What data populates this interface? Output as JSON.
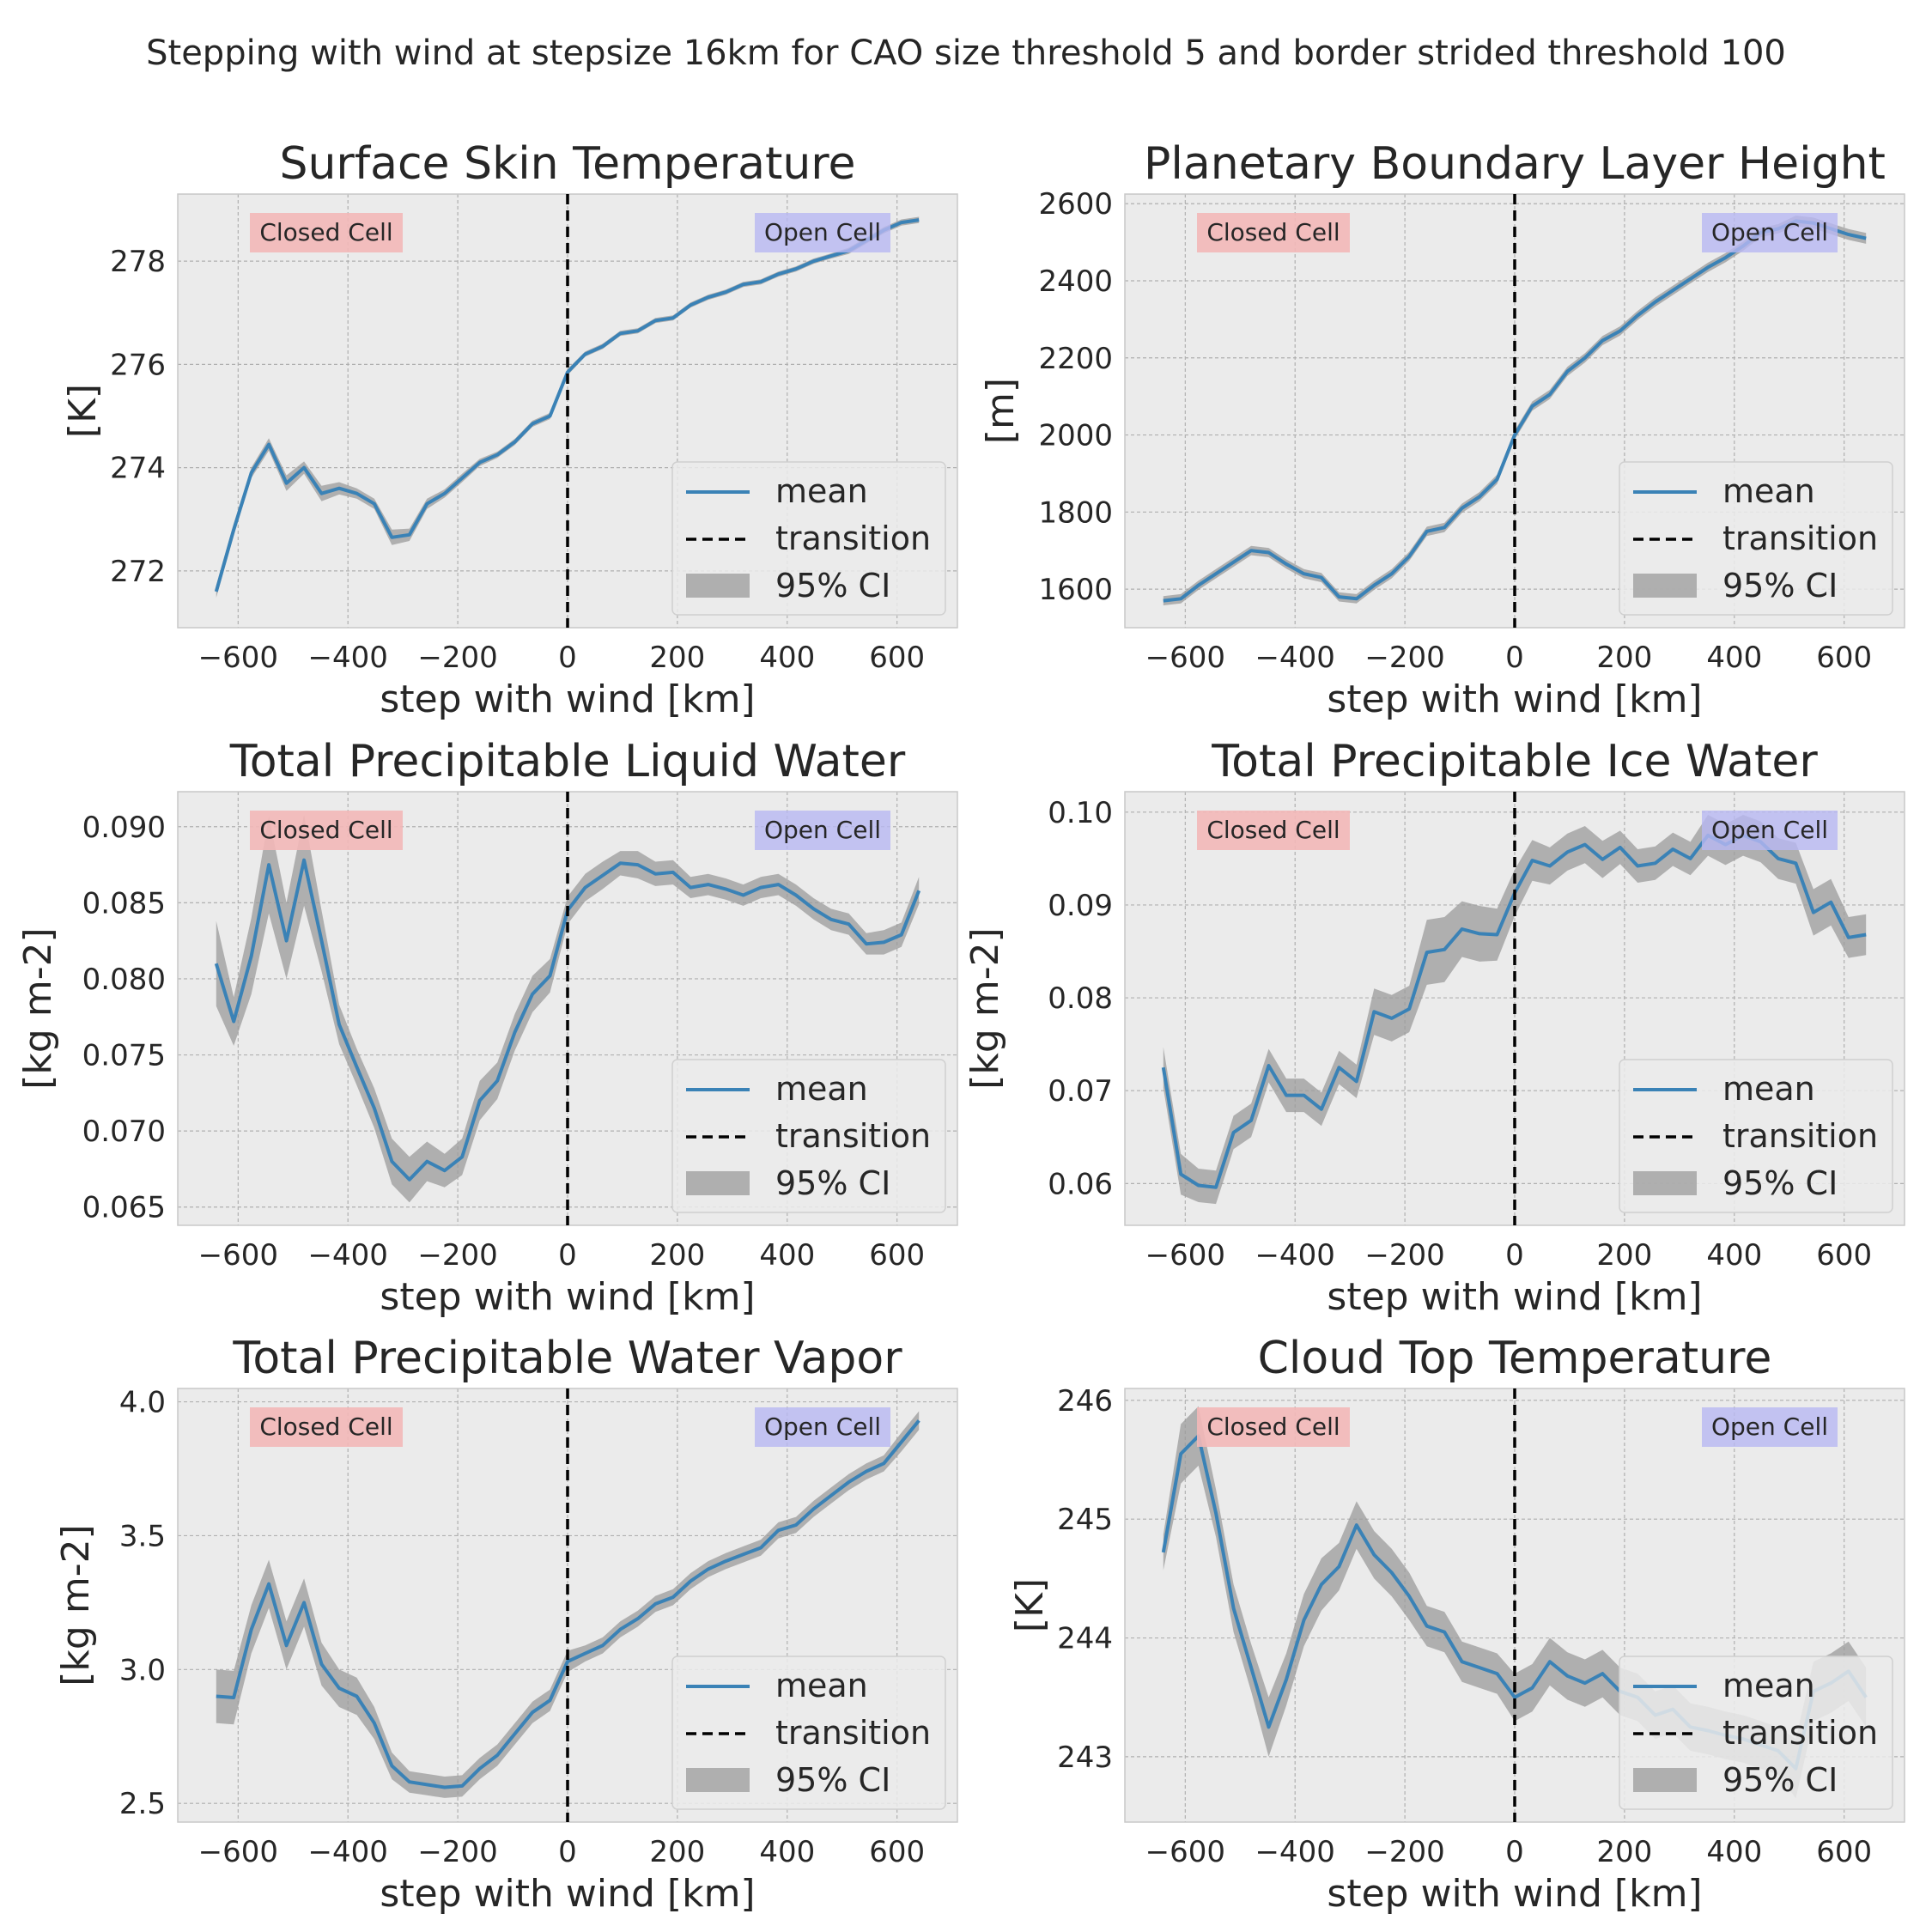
{
  "figure": {
    "suptitle": "Stepping with wind at stepsize 16km for CAO size threshold 5 and border strided threshold 100"
  },
  "colors": {
    "mean_line": "#3a82b6",
    "ci_fill": "#9b9b9b",
    "transition": "#000000",
    "axes_bg": "#ebebeb",
    "grid": "#b0b0b0",
    "closed_box": "#f3b8b8",
    "open_box": "#b8b8f2"
  },
  "chart_data": [
    {
      "type": "line",
      "title": "Surface Skin Temperature",
      "xlabel": "step with wind [km]",
      "ylabel": "[K]",
      "xlim": [
        -710,
        710
      ],
      "ylim": [
        270.9,
        279.3
      ],
      "xticks": [
        -600,
        -400,
        -200,
        0,
        200,
        400,
        600
      ],
      "yticks": [
        272,
        274,
        276,
        278
      ],
      "x": [
        -640,
        -608,
        -576,
        -544,
        -512,
        -480,
        -448,
        -416,
        -384,
        -352,
        -320,
        -288,
        -256,
        -224,
        -192,
        -160,
        -128,
        -96,
        -64,
        -32,
        0,
        32,
        64,
        96,
        128,
        160,
        192,
        224,
        256,
        288,
        320,
        352,
        384,
        416,
        448,
        480,
        512,
        544,
        576,
        608,
        640
      ],
      "series": [
        {
          "name": "mean",
          "values": [
            271.6,
            272.8,
            273.9,
            274.45,
            273.7,
            274.0,
            273.5,
            273.6,
            273.5,
            273.3,
            272.65,
            272.7,
            273.3,
            273.5,
            273.8,
            274.1,
            274.25,
            274.5,
            274.85,
            275.0,
            275.85,
            276.2,
            276.35,
            276.6,
            276.65,
            276.85,
            276.9,
            277.15,
            277.3,
            277.4,
            277.55,
            277.6,
            277.75,
            277.85,
            278.0,
            278.1,
            278.2,
            278.4,
            278.6,
            278.75,
            278.8
          ]
        }
      ],
      "ci_halfwidth": [
        0.12,
        0.12,
        0.1,
        0.12,
        0.15,
        0.12,
        0.15,
        0.12,
        0.1,
        0.1,
        0.15,
        0.12,
        0.1,
        0.08,
        0.08,
        0.07,
        0.06,
        0.06,
        0.06,
        0.06,
        0.06,
        0.05,
        0.05,
        0.05,
        0.05,
        0.05,
        0.05,
        0.05,
        0.05,
        0.05,
        0.05,
        0.05,
        0.05,
        0.05,
        0.05,
        0.05,
        0.06,
        0.06,
        0.06,
        0.06,
        0.06
      ],
      "transition_x": 0,
      "legend": {
        "position": "lower-right",
        "entries": [
          "mean",
          "transition",
          "95% CI"
        ]
      },
      "labels": {
        "closed": "Closed Cell",
        "open": "Open Cell"
      }
    },
    {
      "type": "line",
      "title": "Planetary Boundary Layer Height",
      "xlabel": "step with wind [km]",
      "ylabel": "[m]",
      "xlim": [
        -710,
        710
      ],
      "ylim": [
        1500,
        2625
      ],
      "xticks": [
        -600,
        -400,
        -200,
        0,
        200,
        400,
        600
      ],
      "yticks": [
        1600,
        1800,
        2000,
        2200,
        2400,
        2600
      ],
      "x": [
        -640,
        -608,
        -576,
        -544,
        -512,
        -480,
        -448,
        -416,
        -384,
        -352,
        -320,
        -288,
        -256,
        -224,
        -192,
        -160,
        -128,
        -96,
        -64,
        -32,
        0,
        32,
        64,
        96,
        128,
        160,
        192,
        224,
        256,
        288,
        320,
        352,
        384,
        416,
        448,
        480,
        512,
        544,
        576,
        608,
        640
      ],
      "series": [
        {
          "name": "mean",
          "values": [
            1570,
            1575,
            1610,
            1640,
            1670,
            1700,
            1695,
            1665,
            1640,
            1630,
            1580,
            1575,
            1610,
            1640,
            1685,
            1750,
            1760,
            1810,
            1840,
            1885,
            2000,
            2075,
            2105,
            2165,
            2200,
            2245,
            2270,
            2310,
            2345,
            2375,
            2405,
            2435,
            2460,
            2490,
            2525,
            2535,
            2555,
            2550,
            2535,
            2520,
            2510
          ]
        }
      ],
      "ci_halfwidth": [
        12,
        12,
        12,
        12,
        12,
        12,
        12,
        12,
        12,
        12,
        12,
        12,
        12,
        12,
        12,
        12,
        12,
        12,
        12,
        12,
        12,
        12,
        12,
        12,
        12,
        12,
        12,
        12,
        12,
        12,
        12,
        12,
        12,
        12,
        12,
        12,
        14,
        14,
        14,
        14,
        14
      ],
      "transition_x": 0,
      "legend": {
        "position": "lower-right",
        "entries": [
          "mean",
          "transition",
          "95% CI"
        ]
      },
      "labels": {
        "closed": "Closed Cell",
        "open": "Open Cell"
      }
    },
    {
      "type": "line",
      "title": "Total Precipitable Liquid Water",
      "xlabel": "step with wind [km]",
      "ylabel": "[kg m-2]",
      "xlim": [
        -710,
        710
      ],
      "ylim": [
        0.0638,
        0.0923
      ],
      "xticks": [
        -600,
        -400,
        -200,
        0,
        200,
        400,
        600
      ],
      "yticks": [
        0.065,
        0.07,
        0.075,
        0.08,
        0.085,
        0.09
      ],
      "x": [
        -640,
        -608,
        -576,
        -544,
        -512,
        -480,
        -448,
        -416,
        -384,
        -352,
        -320,
        -288,
        -256,
        -224,
        -192,
        -160,
        -128,
        -96,
        -64,
        -32,
        0,
        32,
        64,
        96,
        128,
        160,
        192,
        224,
        256,
        288,
        320,
        352,
        384,
        416,
        448,
        480,
        512,
        544,
        576,
        608,
        640
      ],
      "series": [
        {
          "name": "mean",
          "values": [
            0.081,
            0.0772,
            0.0815,
            0.0875,
            0.0825,
            0.0878,
            0.0825,
            0.077,
            0.0742,
            0.0715,
            0.068,
            0.0668,
            0.068,
            0.0674,
            0.0683,
            0.072,
            0.0733,
            0.0765,
            0.079,
            0.0802,
            0.0845,
            0.086,
            0.0868,
            0.0876,
            0.0875,
            0.0869,
            0.087,
            0.086,
            0.0862,
            0.0859,
            0.0855,
            0.086,
            0.0862,
            0.0855,
            0.0846,
            0.0839,
            0.0836,
            0.0823,
            0.0824,
            0.0829,
            0.0858
          ]
        }
      ],
      "ci_halfwidth": [
        0.0028,
        0.0016,
        0.0025,
        0.0032,
        0.0025,
        0.003,
        0.002,
        0.0013,
        0.0012,
        0.0013,
        0.0015,
        0.0015,
        0.0013,
        0.0011,
        0.0012,
        0.0013,
        0.0012,
        0.0012,
        0.0012,
        0.0011,
        0.0009,
        0.0009,
        0.0009,
        0.0008,
        0.0009,
        0.0008,
        0.0008,
        0.0007,
        0.0007,
        0.0007,
        0.0007,
        0.0007,
        0.0007,
        0.0007,
        0.0007,
        0.0007,
        0.0007,
        0.0007,
        0.0008,
        0.0008,
        0.0009
      ],
      "transition_x": 0,
      "legend": {
        "position": "lower-right",
        "entries": [
          "mean",
          "transition",
          "95% CI"
        ]
      },
      "labels": {
        "closed": "Closed Cell",
        "open": "Open Cell"
      }
    },
    {
      "type": "line",
      "title": "Total Precipitable Ice Water",
      "xlabel": "step with wind [km]",
      "ylabel": "[kg m-2]",
      "xlim": [
        -710,
        710
      ],
      "ylim": [
        0.0555,
        0.1022
      ],
      "xticks": [
        -600,
        -400,
        -200,
        0,
        200,
        400,
        600
      ],
      "yticks": [
        0.06,
        0.07,
        0.08,
        0.09,
        0.1
      ],
      "x": [
        -640,
        -608,
        -576,
        -544,
        -512,
        -480,
        -448,
        -416,
        -384,
        -352,
        -320,
        -288,
        -256,
        -224,
        -192,
        -160,
        -128,
        -96,
        -64,
        -32,
        0,
        32,
        64,
        96,
        128,
        160,
        192,
        224,
        256,
        288,
        320,
        352,
        384,
        416,
        448,
        480,
        512,
        544,
        576,
        608,
        640
      ],
      "series": [
        {
          "name": "mean",
          "values": [
            0.0725,
            0.061,
            0.0598,
            0.0596,
            0.0655,
            0.0668,
            0.0727,
            0.0695,
            0.0695,
            0.068,
            0.0725,
            0.071,
            0.0785,
            0.0778,
            0.0788,
            0.0849,
            0.0852,
            0.0874,
            0.0869,
            0.0868,
            0.0913,
            0.0948,
            0.0942,
            0.0957,
            0.0965,
            0.0949,
            0.0962,
            0.0942,
            0.0945,
            0.096,
            0.095,
            0.0975,
            0.0965,
            0.0975,
            0.0968,
            0.095,
            0.0945,
            0.0892,
            0.0903,
            0.0865,
            0.0868
          ]
        }
      ],
      "ci_halfwidth": [
        0.0022,
        0.0022,
        0.0018,
        0.0018,
        0.0018,
        0.0018,
        0.0018,
        0.0018,
        0.0018,
        0.0018,
        0.0018,
        0.0018,
        0.0025,
        0.0025,
        0.0025,
        0.0035,
        0.0035,
        0.003,
        0.003,
        0.0028,
        0.0025,
        0.0022,
        0.002,
        0.002,
        0.002,
        0.002,
        0.0018,
        0.0018,
        0.0018,
        0.0018,
        0.0018,
        0.0022,
        0.0022,
        0.0022,
        0.0022,
        0.0022,
        0.0022,
        0.0025,
        0.0025,
        0.0022,
        0.0022
      ],
      "transition_x": 0,
      "legend": {
        "position": "lower-right",
        "entries": [
          "mean",
          "transition",
          "95% CI"
        ]
      },
      "labels": {
        "closed": "Closed Cell",
        "open": "Open Cell"
      }
    },
    {
      "type": "line",
      "title": "Total Precipitable Water Vapor",
      "xlabel": "step with wind [km]",
      "ylabel": "[kg m-2]",
      "xlim": [
        -710,
        710
      ],
      "ylim": [
        2.43,
        4.05
      ],
      "xticks": [
        -600,
        -400,
        -200,
        0,
        200,
        400,
        600
      ],
      "yticks": [
        2.5,
        3.0,
        3.5,
        4.0
      ],
      "x": [
        -640,
        -608,
        -576,
        -544,
        -512,
        -480,
        -448,
        -416,
        -384,
        -352,
        -320,
        -288,
        -256,
        -224,
        -192,
        -160,
        -128,
        -96,
        -64,
        -32,
        0,
        32,
        64,
        96,
        128,
        160,
        192,
        224,
        256,
        288,
        320,
        352,
        384,
        416,
        448,
        480,
        512,
        544,
        576,
        608,
        640
      ],
      "series": [
        {
          "name": "mean",
          "values": [
            2.9,
            2.895,
            3.15,
            3.32,
            3.09,
            3.25,
            3.02,
            2.93,
            2.9,
            2.8,
            2.64,
            2.58,
            2.57,
            2.56,
            2.565,
            2.63,
            2.68,
            2.76,
            2.84,
            2.885,
            3.03,
            3.06,
            3.09,
            3.15,
            3.19,
            3.245,
            3.27,
            3.33,
            3.375,
            3.405,
            3.43,
            3.455,
            3.52,
            3.54,
            3.6,
            3.65,
            3.7,
            3.74,
            3.77,
            3.85,
            3.93
          ]
        }
      ],
      "ci_halfwidth": [
        0.1,
        0.1,
        0.09,
        0.09,
        0.09,
        0.09,
        0.08,
        0.07,
        0.07,
        0.06,
        0.05,
        0.04,
        0.04,
        0.04,
        0.04,
        0.04,
        0.04,
        0.04,
        0.04,
        0.04,
        0.04,
        0.03,
        0.03,
        0.03,
        0.03,
        0.03,
        0.03,
        0.03,
        0.03,
        0.03,
        0.03,
        0.03,
        0.03,
        0.03,
        0.03,
        0.03,
        0.03,
        0.03,
        0.03,
        0.035,
        0.035
      ],
      "transition_x": 0,
      "legend": {
        "position": "lower-right",
        "entries": [
          "mean",
          "transition",
          "95% CI"
        ]
      },
      "labels": {
        "closed": "Closed Cell",
        "open": "Open Cell"
      }
    },
    {
      "type": "line",
      "title": "Cloud Top Temperature",
      "xlabel": "step with wind [km]",
      "ylabel": "[K]",
      "xlim": [
        -710,
        710
      ],
      "ylim": [
        242.45,
        246.1
      ],
      "xticks": [
        -600,
        -400,
        -200,
        0,
        200,
        400,
        600
      ],
      "yticks": [
        243,
        244,
        245,
        246
      ],
      "x": [
        -640,
        -608,
        -576,
        -544,
        -512,
        -480,
        -448,
        -416,
        -384,
        -352,
        -320,
        -288,
        -256,
        -224,
        -192,
        -160,
        -128,
        -96,
        -64,
        -32,
        0,
        32,
        64,
        96,
        128,
        160,
        192,
        224,
        256,
        288,
        320,
        352,
        384,
        416,
        448,
        480,
        512,
        544,
        576,
        608,
        640
      ],
      "series": [
        {
          "name": "mean",
          "values": [
            244.72,
            245.55,
            245.7,
            245.05,
            244.25,
            243.75,
            243.25,
            243.65,
            244.15,
            244.45,
            244.6,
            244.95,
            244.7,
            244.55,
            244.35,
            244.1,
            244.05,
            243.8,
            243.75,
            243.7,
            243.5,
            243.58,
            243.8,
            243.68,
            243.62,
            243.7,
            243.55,
            243.5,
            243.35,
            243.4,
            243.25,
            243.22,
            243.18,
            243.15,
            243.1,
            243.05,
            242.9,
            243.55,
            243.62,
            243.72,
            243.5
          ]
        }
      ],
      "ci_halfwidth": [
        0.15,
        0.25,
        0.25,
        0.2,
        0.2,
        0.2,
        0.25,
        0.22,
        0.22,
        0.22,
        0.2,
        0.2,
        0.2,
        0.2,
        0.2,
        0.17,
        0.17,
        0.17,
        0.17,
        0.17,
        0.2,
        0.2,
        0.2,
        0.2,
        0.2,
        0.2,
        0.2,
        0.2,
        0.2,
        0.2,
        0.2,
        0.2,
        0.2,
        0.2,
        0.2,
        0.2,
        0.25,
        0.25,
        0.25,
        0.25,
        0.25
      ],
      "transition_x": 0,
      "legend": {
        "position": "lower-right",
        "entries": [
          "mean",
          "transition",
          "95% CI"
        ]
      },
      "labels": {
        "closed": "Closed Cell",
        "open": "Open Cell"
      }
    }
  ]
}
